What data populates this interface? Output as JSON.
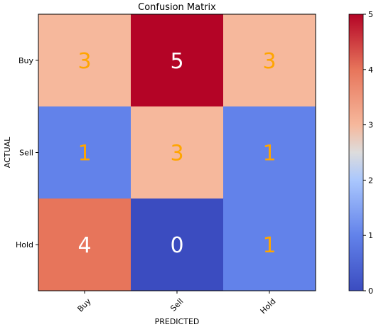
{
  "chart_data": {
    "type": "heatmap",
    "title": "Confusion Matrix",
    "xlabel": "PREDICTED",
    "ylabel": "ACTUAL",
    "x_categories": [
      "Buy",
      "Sell",
      "Hold"
    ],
    "y_categories": [
      "Buy",
      "Sell",
      "Hold"
    ],
    "values": [
      [
        3,
        5,
        3
      ],
      [
        1,
        3,
        1
      ],
      [
        4,
        0,
        1
      ]
    ],
    "colormap": "coolwarm",
    "colorbar": {
      "range": [
        0,
        5
      ],
      "ticks": [
        "0",
        "1",
        "2",
        "3",
        "4",
        "5"
      ]
    },
    "annotation_colors": {
      "light": "#ffffff",
      "dark": "#ffa500"
    }
  }
}
